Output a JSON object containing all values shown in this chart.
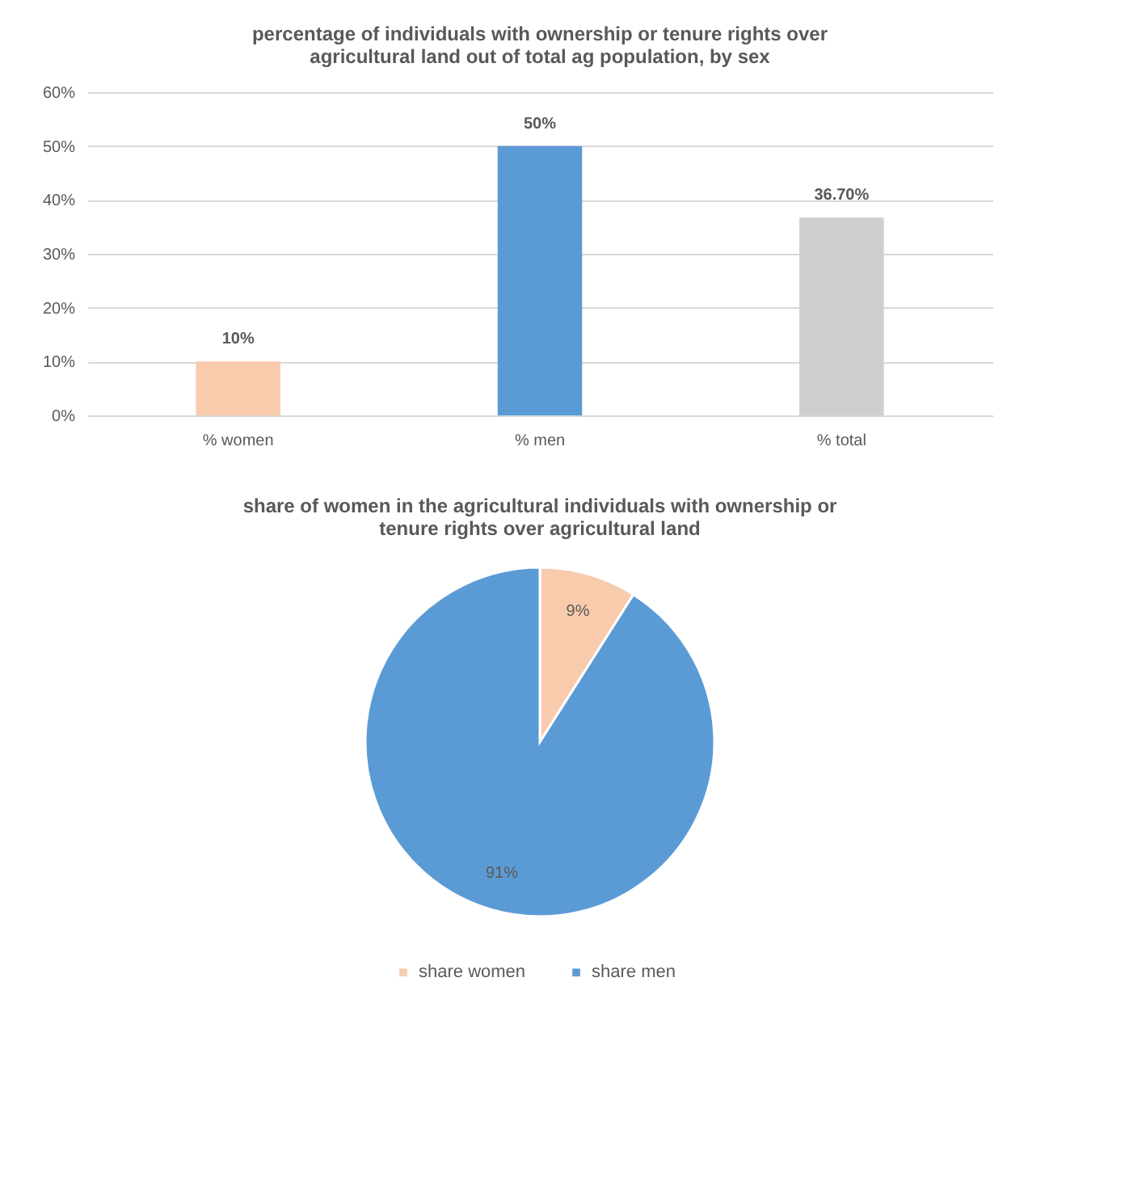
{
  "chart_data": [
    {
      "type": "bar",
      "title": "percentage of individuals with ownership or  tenure rights over\nagricultural  land out of total ag population, by sex",
      "categories": [
        "% women",
        "% men",
        "% total"
      ],
      "values": [
        10,
        50,
        36.7
      ],
      "colors": [
        "#f8cbad",
        "#5b9bd5",
        "#d0cece"
      ],
      "value_labels": [
        "10%",
        "50%",
        "36.70%"
      ],
      "ylim": [
        0,
        60
      ],
      "yticks": [
        {
          "value": 0,
          "label": "0%"
        },
        {
          "value": 10,
          "label": "10%"
        },
        {
          "value": 20,
          "label": "20%"
        },
        {
          "value": 30,
          "label": "30%"
        },
        {
          "value": 40,
          "label": "40%"
        },
        {
          "value": 50,
          "label": "50%"
        },
        {
          "value": 60,
          "label": "60%"
        }
      ],
      "grid": "y"
    },
    {
      "type": "pie",
      "title": "share of women in the agricultural individuals with ownership or\ntenure rights over agricultural land",
      "categories": [
        "share women",
        "share men"
      ],
      "values": [
        9,
        91
      ],
      "colors": [
        "#f8cbad",
        "#5b9bd5"
      ],
      "value_labels": [
        "9%",
        "91%"
      ],
      "legend": "bottom"
    }
  ]
}
